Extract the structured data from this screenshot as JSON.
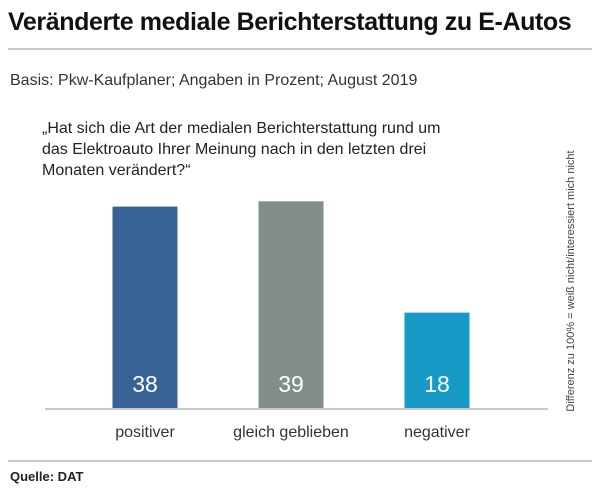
{
  "header": {
    "title": "Veränderte mediale Berichterstattung zu E-Autos",
    "subtitle": "Basis: Pkw-Kaufplaner; Angaben in Prozent; August 2019"
  },
  "question": "„Hat sich die Art der medialen Berichterstattung rund um das Elektroauto Ihrer Meinung nach in den letzten drei Monaten verändert?“",
  "side_note": "Differenz zu 100% = weiß nicht/interessiert mich nicht",
  "footer": {
    "source": "Quelle: DAT"
  },
  "chart_data": {
    "type": "bar",
    "title": "Veränderte mediale Berichterstattung zu E-Autos",
    "categories": [
      "positiver",
      "gleich geblieben",
      "negativer"
    ],
    "values": [
      38,
      39,
      18
    ],
    "colors": [
      "#366295",
      "#838d8c",
      "#189ac7"
    ],
    "value_label_color": "#ffffff",
    "xlabel": "",
    "ylabel": "",
    "ylim": [
      0,
      40
    ],
    "grid": false,
    "legend": "none"
  }
}
